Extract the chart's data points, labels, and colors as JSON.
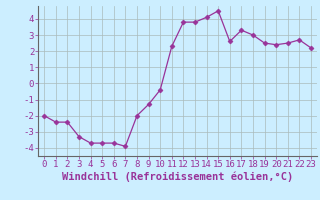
{
  "x": [
    0,
    1,
    2,
    3,
    4,
    5,
    6,
    7,
    8,
    9,
    10,
    11,
    12,
    13,
    14,
    15,
    16,
    17,
    18,
    19,
    20,
    21,
    22,
    23
  ],
  "y": [
    -2.0,
    -2.4,
    -2.4,
    -3.3,
    -3.7,
    -3.7,
    -3.7,
    -3.9,
    -2.0,
    -1.3,
    -0.4,
    2.3,
    3.8,
    3.8,
    4.1,
    4.5,
    2.6,
    3.3,
    3.0,
    2.5,
    2.4,
    2.5,
    2.7,
    2.2
  ],
  "line_color": "#993399",
  "marker": "D",
  "marker_size": 2.5,
  "background_color": "#cceeff",
  "grid_color": "#aabbbb",
  "xlabel": "Windchill (Refroidissement éolien,°C)",
  "ylabel": "",
  "title": "",
  "xlim": [
    -0.5,
    23.5
  ],
  "ylim": [
    -4.5,
    4.8
  ],
  "yticks": [
    -4,
    -3,
    -2,
    -1,
    0,
    1,
    2,
    3,
    4
  ],
  "xticks": [
    0,
    1,
    2,
    3,
    4,
    5,
    6,
    7,
    8,
    9,
    10,
    11,
    12,
    13,
    14,
    15,
    16,
    17,
    18,
    19,
    20,
    21,
    22,
    23
  ],
  "font_color": "#993399",
  "tick_fontsize": 6.5,
  "xlabel_fontsize": 7.5
}
